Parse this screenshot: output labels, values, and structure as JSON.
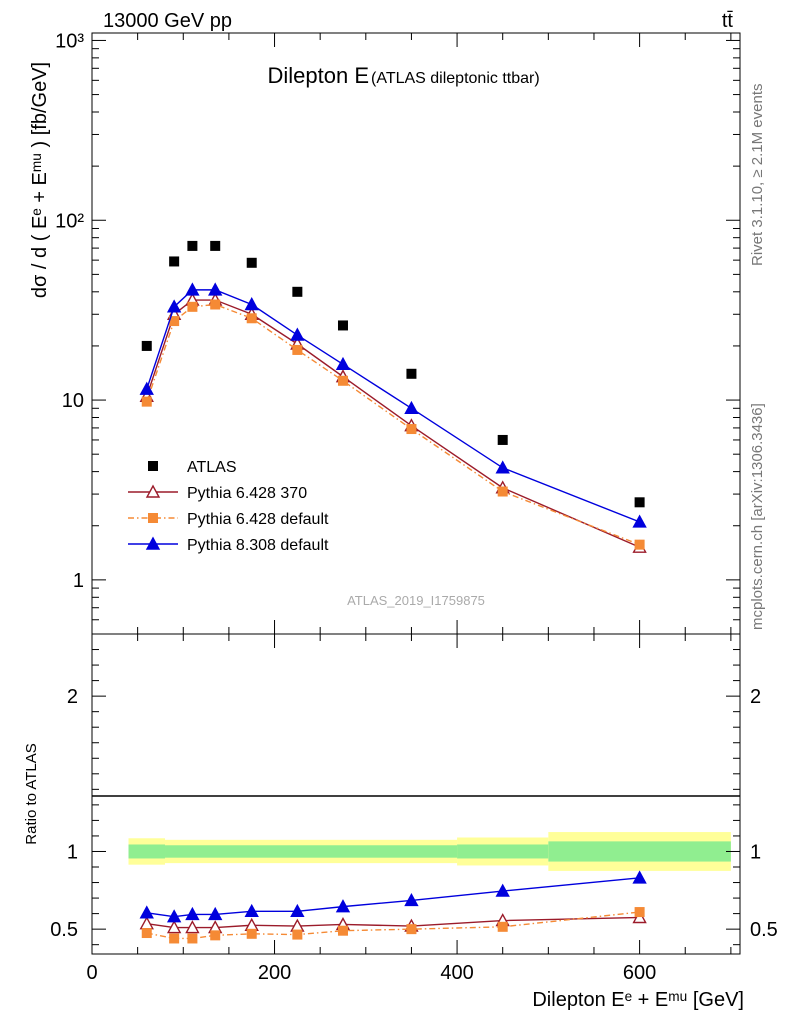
{
  "header": {
    "energy_label": "13000 GeV pp",
    "process_label": "tt̄"
  },
  "side_labels": {
    "rivet": "Rivet 3.1.10, ≥ 2.1M events",
    "mcplots": "mcplots.cern.ch [arXiv:1306.3436]"
  },
  "analysis_id": "ATLAS_2019_I1759875",
  "chart_data": [
    {
      "type": "scatter",
      "title": "Dilepton E",
      "subtitle": "(ATLAS dileptonic ttbar)",
      "ylabel": "dσ / d ( Eᵉ + Eᵐᵘ ) [fb/GeV]",
      "yscale": "log",
      "xlim": [
        0,
        710
      ],
      "ylim": [
        0.5,
        1100
      ],
      "yticks": [
        {
          "v": 1,
          "label": "1"
        },
        {
          "v": 10,
          "label": "10"
        },
        {
          "v": 100,
          "label": "10²"
        },
        {
          "v": 1000,
          "label": "10³"
        }
      ],
      "legend_position": "lower-left",
      "series": [
        {
          "name": "ATLAS",
          "color": "#000000",
          "marker": "square",
          "line": false,
          "x": [
            60,
            90,
            110,
            135,
            175,
            225,
            275,
            350,
            450,
            600
          ],
          "y": [
            20.0,
            59.0,
            72.0,
            72.0,
            58.0,
            40.0,
            26.0,
            14.0,
            6.0,
            2.7
          ]
        },
        {
          "name": "Pythia 6.428 370",
          "color": "#9b1b2a",
          "marker": "open-triangle",
          "line": "solid",
          "x": [
            60,
            90,
            110,
            135,
            175,
            225,
            275,
            350,
            450,
            600
          ],
          "y": [
            10.5,
            30.0,
            36.0,
            36.0,
            30.0,
            20.5,
            13.5,
            7.2,
            3.25,
            1.52
          ]
        },
        {
          "name": "Pythia 6.428 default",
          "color": "#f58a35",
          "marker": "square",
          "line": "dashdot",
          "x": [
            60,
            90,
            110,
            135,
            175,
            225,
            275,
            350,
            450,
            600
          ],
          "y": [
            9.8,
            27.5,
            33.0,
            34.0,
            28.5,
            19.0,
            12.8,
            6.9,
            3.1,
            1.57
          ]
        },
        {
          "name": "Pythia 8.308 default",
          "color": "#0000dd",
          "marker": "triangle",
          "line": "solid",
          "x": [
            60,
            90,
            110,
            135,
            175,
            225,
            275,
            350,
            450,
            600
          ],
          "y": [
            11.5,
            33.0,
            41.0,
            41.0,
            34.0,
            23.0,
            15.8,
            9.0,
            4.2,
            2.1
          ]
        }
      ]
    },
    {
      "type": "line",
      "ylabel": "Ratio to ATLAS",
      "xlabel": "Dilepton Eᵉ + Eᵐᵘ [GeV]",
      "xlim": [
        0,
        710
      ],
      "ylim": [
        0.34,
        2.4
      ],
      "xticks": [
        0,
        200,
        400,
        600
      ],
      "yticks": [
        0.5,
        1,
        2
      ],
      "uncertainty_bands": [
        {
          "x0": 40,
          "x1": 80,
          "stat": 0.045,
          "total": 0.085
        },
        {
          "x0": 80,
          "x1": 400,
          "stat": 0.04,
          "total": 0.075
        },
        {
          "x0": 400,
          "x1": 500,
          "stat": 0.045,
          "total": 0.09
        },
        {
          "x0": 500,
          "x1": 700,
          "stat": 0.065,
          "total": 0.125
        }
      ],
      "band_colors": {
        "stat": "#90ee90",
        "total": "#ffff99"
      },
      "series": [
        {
          "name": "Pythia 6.428 370",
          "color": "#9b1b2a",
          "marker": "open-triangle",
          "line": "solid",
          "x": [
            60,
            90,
            110,
            135,
            175,
            225,
            275,
            350,
            450,
            600
          ],
          "y": [
            0.535,
            0.51,
            0.51,
            0.51,
            0.525,
            0.52,
            0.53,
            0.52,
            0.555,
            0.575
          ]
        },
        {
          "name": "Pythia 6.428 default",
          "color": "#f58a35",
          "marker": "square",
          "line": "dashdot",
          "x": [
            60,
            90,
            110,
            135,
            175,
            225,
            275,
            350,
            450,
            600
          ],
          "y": [
            0.475,
            0.44,
            0.44,
            0.46,
            0.47,
            0.465,
            0.49,
            0.5,
            0.515,
            0.61
          ]
        },
        {
          "name": "Pythia 8.308 default",
          "color": "#0000dd",
          "marker": "triangle",
          "line": "solid",
          "x": [
            60,
            90,
            110,
            135,
            175,
            225,
            275,
            350,
            450,
            600
          ],
          "y": [
            0.605,
            0.58,
            0.595,
            0.595,
            0.615,
            0.615,
            0.645,
            0.685,
            0.745,
            0.83
          ]
        }
      ]
    }
  ]
}
